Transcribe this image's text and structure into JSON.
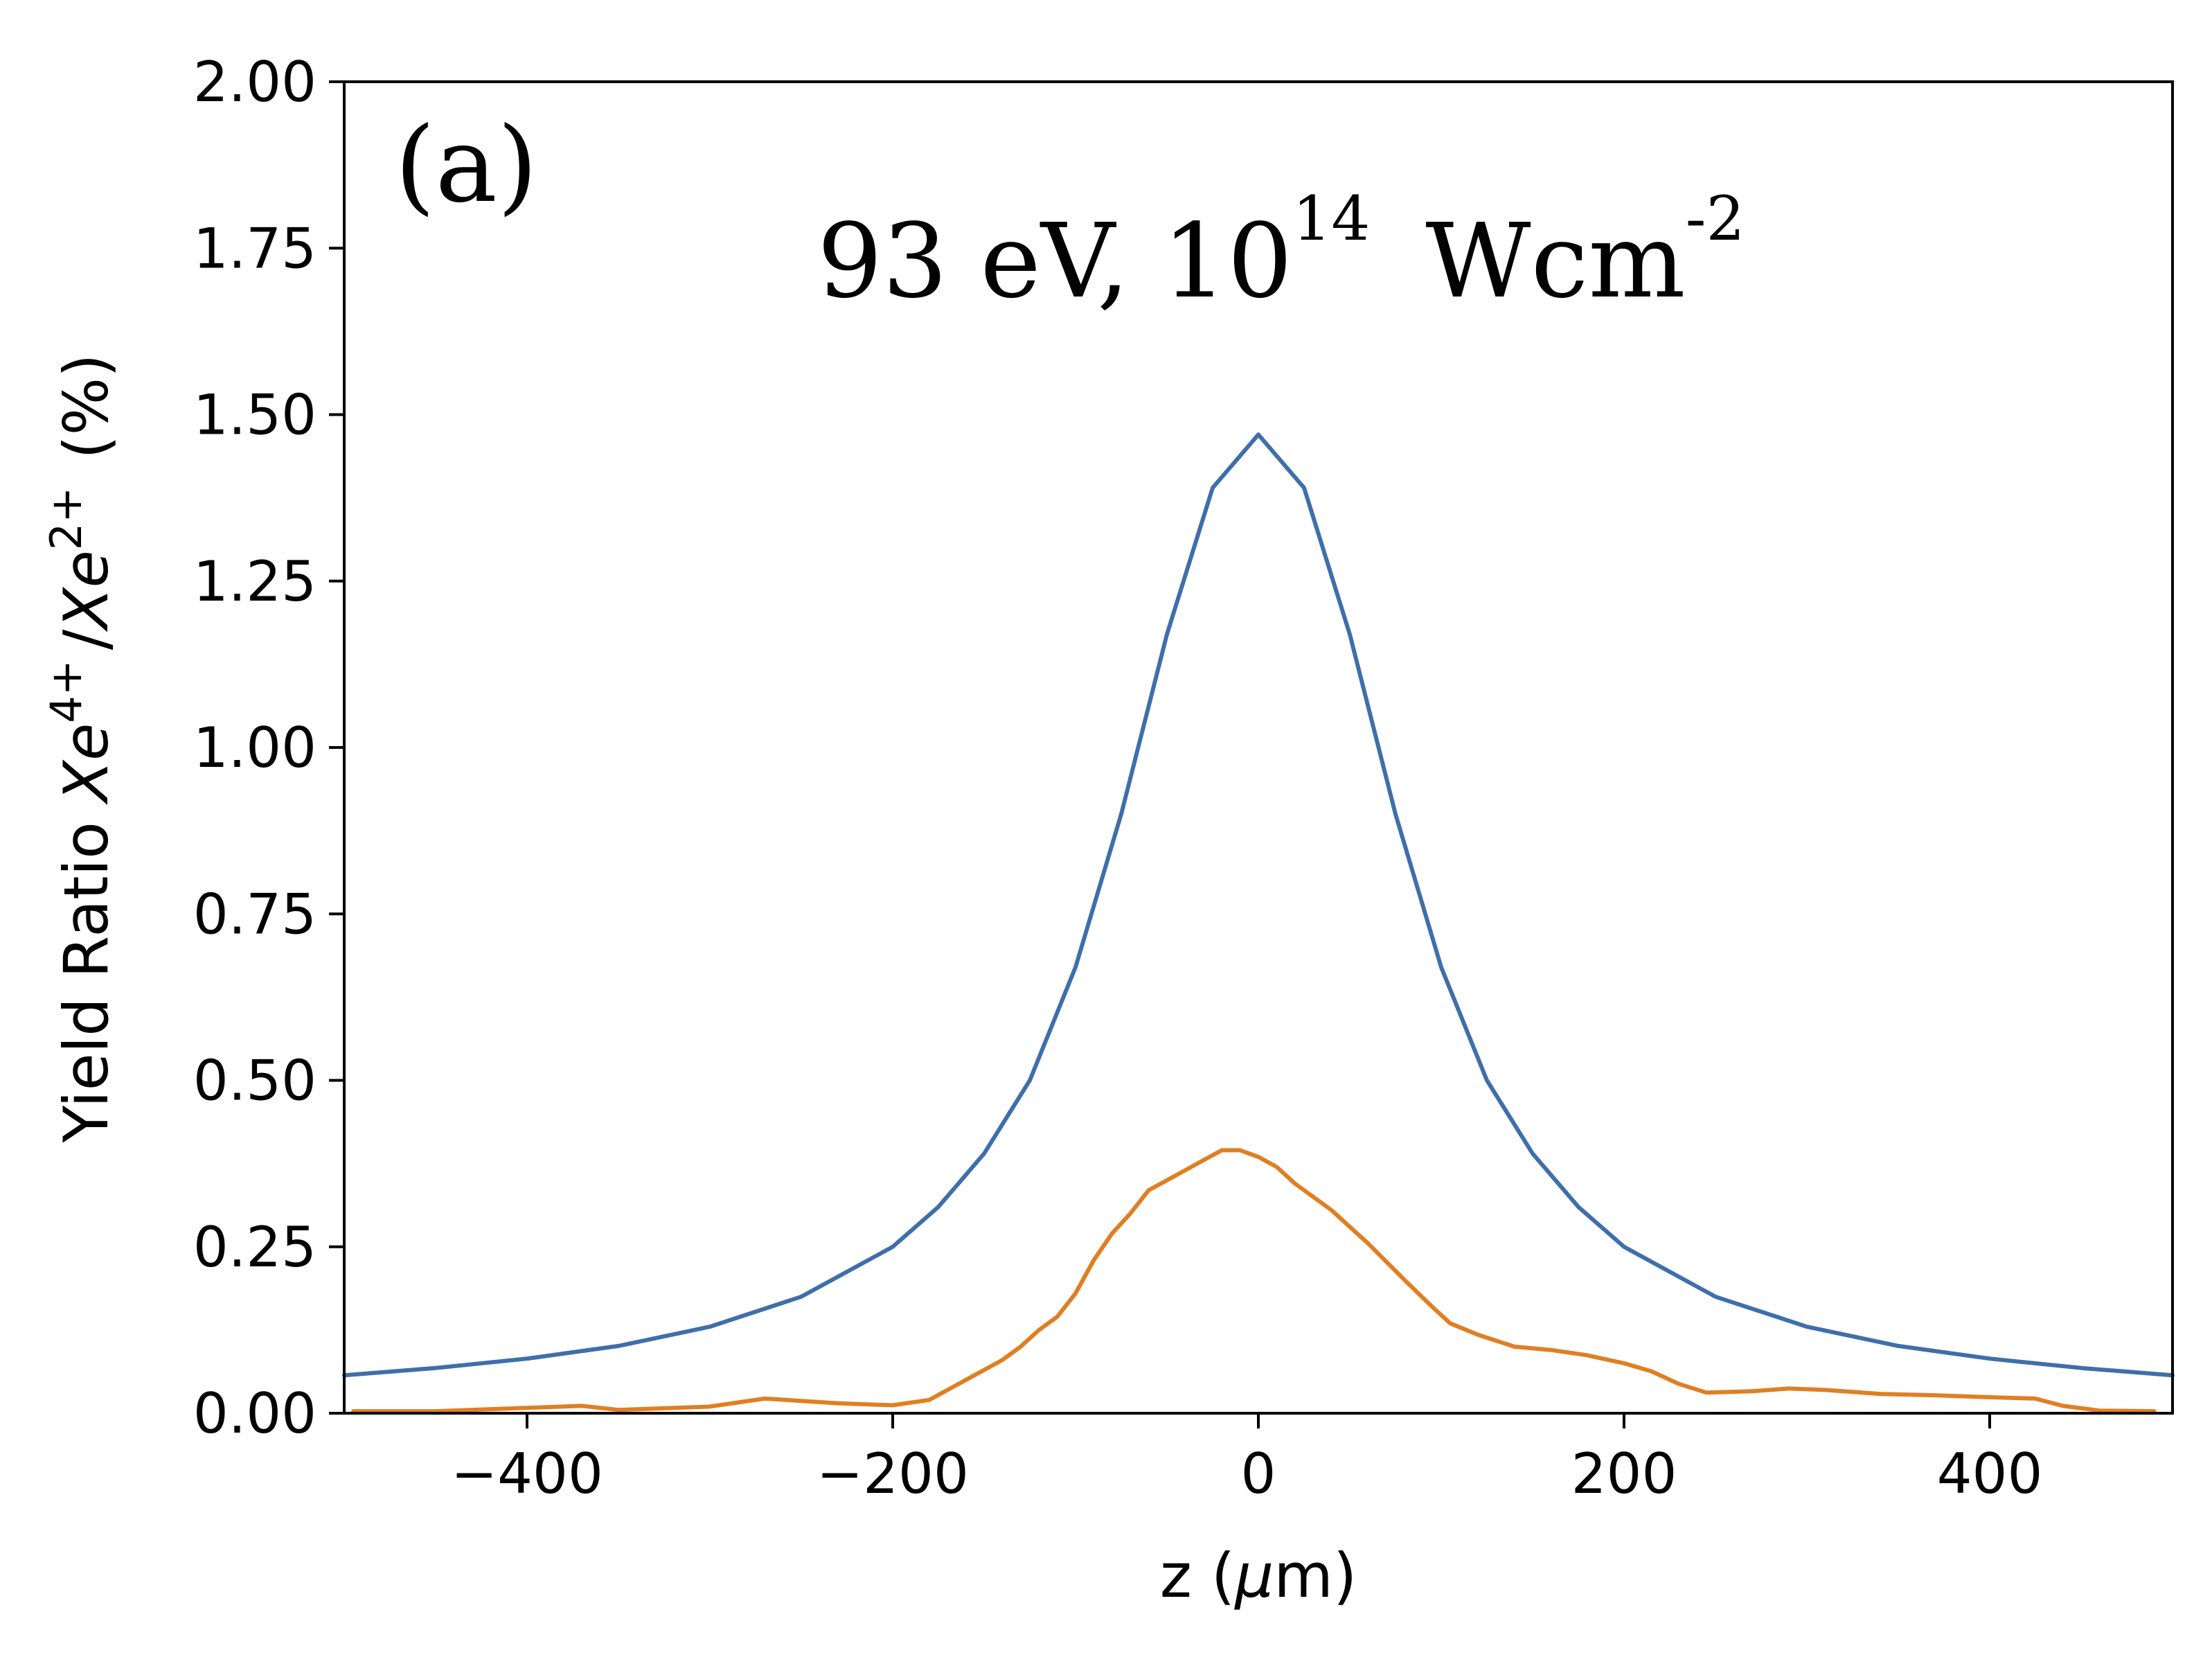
{
  "chart_data": {
    "type": "line",
    "panel_label": "(a)",
    "title": {
      "energy": "93 eV, 10",
      "exponent": "14",
      "unit": "Wcm",
      "unit_exponent": "-2"
    },
    "xlabel": {
      "prefix": "z (",
      "mu": "μ",
      "suffix": "m)"
    },
    "ylabel": {
      "prefix": "Yield Ratio ",
      "ion_a": "Xe",
      "ion_a_charge": "4+",
      "slash": "/",
      "ion_b": "Xe",
      "ion_b_charge": "2+",
      "suffix": "(%)"
    },
    "xlim": [
      -500,
      500
    ],
    "ylim": [
      0,
      2.0
    ],
    "xticks": [
      -400,
      -200,
      0,
      200,
      400
    ],
    "xtick_labels": [
      "−400",
      "−200",
      "0",
      "200",
      "400"
    ],
    "yticks": [
      0,
      0.25,
      0.5,
      0.75,
      1.0,
      1.25,
      1.5,
      1.75,
      2.0
    ],
    "ytick_labels": [
      "0.00",
      "0.25",
      "0.50",
      "0.75",
      "1.00",
      "1.25",
      "1.50",
      "1.75",
      "2.00"
    ],
    "grid": false,
    "series": [
      {
        "name": "blue-curve",
        "color": "#3f6faa",
        "x": [
          -500,
          -450,
          -400,
          -350,
          -300,
          -250,
          -200,
          -175,
          -150,
          -125,
          -100,
          -75,
          -50,
          -25,
          0,
          25,
          50,
          75,
          100,
          125,
          150,
          175,
          200,
          250,
          300,
          350,
          400,
          450,
          500
        ],
        "y": [
          0.057,
          0.068,
          0.082,
          0.101,
          0.13,
          0.175,
          0.25,
          0.31,
          0.39,
          0.5,
          0.67,
          0.9,
          1.17,
          1.39,
          1.47,
          1.39,
          1.17,
          0.9,
          0.67,
          0.5,
          0.39,
          0.31,
          0.25,
          0.175,
          0.13,
          0.101,
          0.082,
          0.068,
          0.057
        ]
      },
      {
        "name": "orange-curve",
        "color": "#e07f22",
        "x": [
          -495,
          -450,
          -400,
          -370,
          -350,
          -300,
          -270,
          -230,
          -200,
          -180,
          -160,
          -140,
          -130,
          -120,
          -110,
          -100,
          -90,
          -80,
          -70,
          -60,
          -50,
          -40,
          -30,
          -20,
          -10,
          0,
          10,
          20,
          40,
          60,
          80,
          95,
          105,
          120,
          140,
          160,
          180,
          200,
          215,
          230,
          245,
          270,
          290,
          310,
          340,
          370,
          400,
          425,
          440,
          460,
          490
        ],
        "y": [
          0.003,
          0.003,
          0.008,
          0.011,
          0.005,
          0.01,
          0.022,
          0.015,
          0.012,
          0.02,
          0.05,
          0.08,
          0.1,
          0.125,
          0.145,
          0.18,
          0.23,
          0.27,
          0.3,
          0.335,
          0.35,
          0.365,
          0.38,
          0.395,
          0.395,
          0.385,
          0.37,
          0.345,
          0.305,
          0.255,
          0.2,
          0.16,
          0.135,
          0.118,
          0.1,
          0.095,
          0.087,
          0.075,
          0.063,
          0.044,
          0.031,
          0.033,
          0.037,
          0.035,
          0.029,
          0.027,
          0.024,
          0.022,
          0.011,
          0.004,
          0.003
        ]
      }
    ]
  }
}
